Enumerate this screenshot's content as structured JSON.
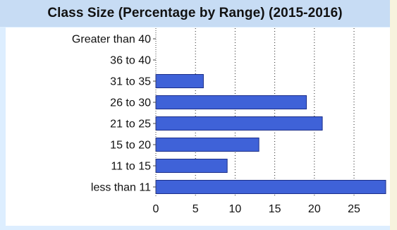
{
  "chart_data": {
    "type": "bar",
    "orientation": "horizontal",
    "title": "Class Size (Percentage by Range) (2015-2016)",
    "xlabel": "",
    "ylabel": "",
    "categories": [
      "Greater than 40",
      "36 to 40",
      "31 to 35",
      "26 to 30",
      "21 to 25",
      "15 to 20",
      "11 to 15",
      "less than 11"
    ],
    "values": [
      0,
      0,
      6,
      19,
      21,
      13,
      9,
      29
    ],
    "xlim": [
      0,
      29
    ],
    "xticks": [
      0,
      5,
      10,
      15,
      20,
      25
    ],
    "grid": "vertical dotted",
    "legend": "none",
    "bar_color": "#3f62d8",
    "bar_edge_color": "#1c2f8a"
  },
  "colors": {
    "panel_bg": "#ddeeff",
    "title_bg": "#c7dcf4",
    "page_bg": "#f7f3de"
  }
}
